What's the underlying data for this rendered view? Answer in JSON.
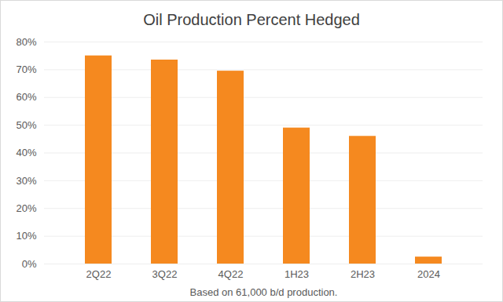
{
  "chart_data": {
    "type": "bar",
    "title": "Oil Production Percent Hedged",
    "x_label": "Based on 61,000 b/d production.",
    "categories": [
      "2Q22",
      "3Q22",
      "4Q22",
      "1H23",
      "2H23",
      "2024"
    ],
    "values": [
      75,
      73.5,
      69.5,
      49,
      46,
      2.5
    ],
    "color": "#f5891f",
    "ylim": [
      0,
      80
    ],
    "yticks": [
      {
        "value": 0,
        "label": "0%"
      },
      {
        "value": 10,
        "label": "10%"
      },
      {
        "value": 20,
        "label": "20%"
      },
      {
        "value": 30,
        "label": "30%"
      },
      {
        "value": 40,
        "label": "40%"
      },
      {
        "value": 50,
        "label": "50%"
      },
      {
        "value": 60,
        "label": "60%"
      },
      {
        "value": 70,
        "label": "70%"
      },
      {
        "value": 80,
        "label": "80%"
      }
    ],
    "grid": true
  }
}
